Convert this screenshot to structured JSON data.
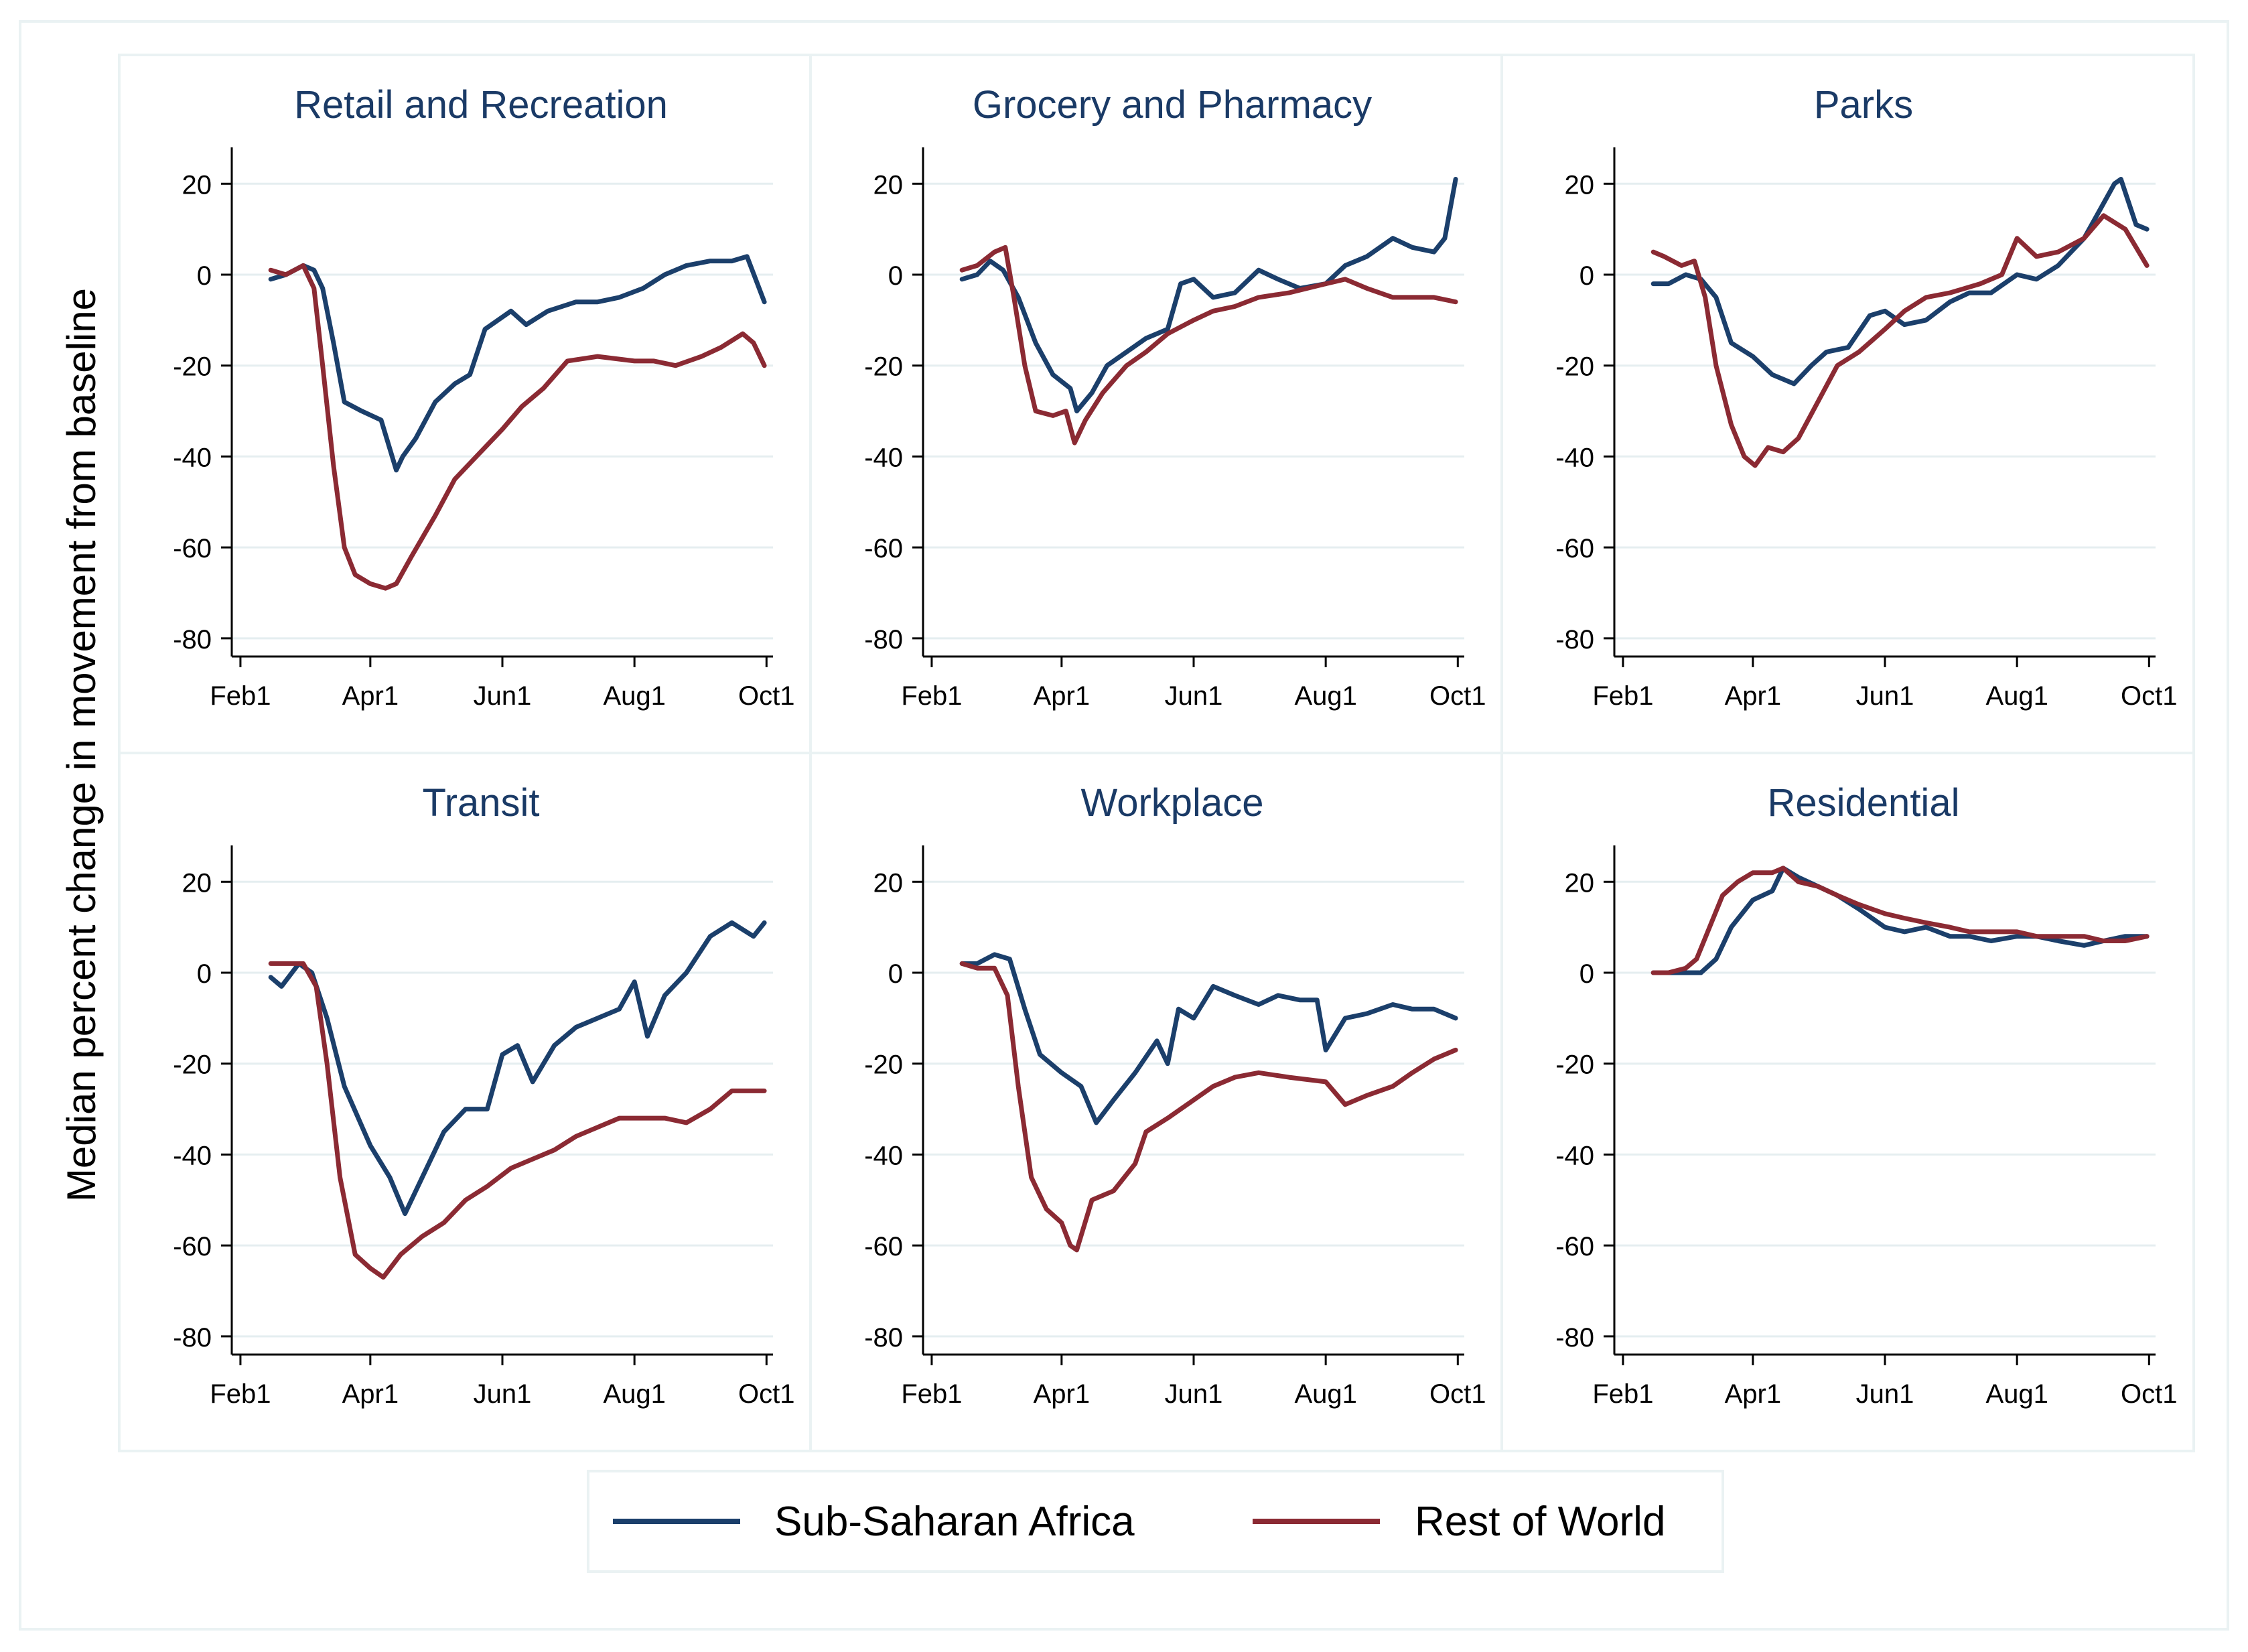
{
  "figure": {
    "ylabel": "Median percent change in movement from baseline",
    "legend": {
      "position": "bottom-center",
      "items": [
        {
          "label": "Sub-Saharan Africa",
          "color": "#1b3f6b"
        },
        {
          "label": "Rest of World",
          "color": "#8b2a33"
        }
      ]
    }
  },
  "chart_data": [
    {
      "type": "line",
      "title": "Retail and Recreation",
      "x_ticks": [
        "Feb1",
        "Apr1",
        "Jun1",
        "Aug1",
        "Oct1"
      ],
      "y_ticks": [
        20,
        0,
        -20,
        -40,
        -60,
        -80
      ],
      "ylim": [
        -84,
        28
      ],
      "grid": true,
      "series": [
        {
          "name": "Sub-Saharan Africa",
          "color": "#1b3f6b",
          "x": [
            "2020-02-15",
            "2020-02-22",
            "2020-03-01",
            "2020-03-06",
            "2020-03-10",
            "2020-03-15",
            "2020-03-20",
            "2020-03-28",
            "2020-04-06",
            "2020-04-13",
            "2020-04-16",
            "2020-04-22",
            "2020-05-01",
            "2020-05-10",
            "2020-05-17",
            "2020-05-24",
            "2020-06-05",
            "2020-06-12",
            "2020-06-22",
            "2020-07-05",
            "2020-07-15",
            "2020-07-25",
            "2020-08-05",
            "2020-08-15",
            "2020-08-25",
            "2020-09-05",
            "2020-09-15",
            "2020-09-22",
            "2020-09-30"
          ],
          "y": [
            -1,
            0,
            2,
            1,
            -3,
            -15,
            -28,
            -30,
            -32,
            -43,
            -40,
            -36,
            -28,
            -24,
            -22,
            -12,
            -8,
            -11,
            -8,
            -6,
            -6,
            -5,
            -3,
            0,
            2,
            3,
            3,
            4,
            -6
          ]
        },
        {
          "name": "Rest of World",
          "color": "#8b2a33",
          "x": [
            "2020-02-15",
            "2020-02-22",
            "2020-03-01",
            "2020-03-06",
            "2020-03-10",
            "2020-03-15",
            "2020-03-20",
            "2020-03-25",
            "2020-04-01",
            "2020-04-08",
            "2020-04-13",
            "2020-04-20",
            "2020-05-01",
            "2020-05-10",
            "2020-05-20",
            "2020-06-01",
            "2020-06-10",
            "2020-06-20",
            "2020-07-01",
            "2020-07-15",
            "2020-08-01",
            "2020-08-10",
            "2020-08-20",
            "2020-09-01",
            "2020-09-10",
            "2020-09-20",
            "2020-09-25",
            "2020-09-30"
          ],
          "y": [
            1,
            0,
            2,
            -3,
            -20,
            -42,
            -60,
            -66,
            -68,
            -69,
            -68,
            -62,
            -53,
            -45,
            -40,
            -34,
            -29,
            -25,
            -19,
            -18,
            -19,
            -19,
            -20,
            -18,
            -16,
            -13,
            -15,
            -20
          ]
        }
      ]
    },
    {
      "type": "line",
      "title": "Grocery and Pharmacy",
      "x_ticks": [
        "Feb1",
        "Apr1",
        "Jun1",
        "Aug1",
        "Oct1"
      ],
      "y_ticks": [
        20,
        0,
        -20,
        -40,
        -60,
        -80
      ],
      "ylim": [
        -84,
        28
      ],
      "grid": true,
      "series": [
        {
          "name": "Sub-Saharan Africa",
          "color": "#1b3f6b",
          "x": [
            "2020-02-15",
            "2020-02-22",
            "2020-02-28",
            "2020-03-05",
            "2020-03-12",
            "2020-03-20",
            "2020-03-28",
            "2020-04-05",
            "2020-04-08",
            "2020-04-15",
            "2020-04-22",
            "2020-05-01",
            "2020-05-10",
            "2020-05-20",
            "2020-05-26",
            "2020-06-01",
            "2020-06-10",
            "2020-06-20",
            "2020-07-01",
            "2020-07-10",
            "2020-07-20",
            "2020-08-01",
            "2020-08-10",
            "2020-08-20",
            "2020-09-01",
            "2020-09-10",
            "2020-09-20",
            "2020-09-25",
            "2020-09-30"
          ],
          "y": [
            -1,
            0,
            3,
            1,
            -5,
            -15,
            -22,
            -25,
            -30,
            -26,
            -20,
            -17,
            -14,
            -12,
            -2,
            -1,
            -5,
            -4,
            1,
            -1,
            -3,
            -2,
            2,
            4,
            8,
            6,
            5,
            8,
            21
          ]
        },
        {
          "name": "Rest of World",
          "color": "#8b2a33",
          "x": [
            "2020-02-15",
            "2020-02-22",
            "2020-03-01",
            "2020-03-06",
            "2020-03-10",
            "2020-03-15",
            "2020-03-20",
            "2020-03-28",
            "2020-04-03",
            "2020-04-07",
            "2020-04-12",
            "2020-04-20",
            "2020-05-01",
            "2020-05-10",
            "2020-05-20",
            "2020-06-01",
            "2020-06-10",
            "2020-06-20",
            "2020-07-01",
            "2020-07-15",
            "2020-08-01",
            "2020-08-10",
            "2020-08-20",
            "2020-09-01",
            "2020-09-10",
            "2020-09-20",
            "2020-09-30"
          ],
          "y": [
            1,
            2,
            5,
            6,
            -5,
            -20,
            -30,
            -31,
            -30,
            -37,
            -32,
            -26,
            -20,
            -17,
            -13,
            -10,
            -8,
            -7,
            -5,
            -4,
            -2,
            -1,
            -3,
            -5,
            -5,
            -5,
            -6
          ]
        }
      ]
    },
    {
      "type": "line",
      "title": "Parks",
      "x_ticks": [
        "Feb1",
        "Apr1",
        "Jun1",
        "Aug1",
        "Oct1"
      ],
      "y_ticks": [
        20,
        0,
        -20,
        -40,
        -60,
        -80
      ],
      "ylim": [
        -84,
        28
      ],
      "grid": true,
      "series": [
        {
          "name": "Sub-Saharan Africa",
          "color": "#1b3f6b",
          "x": [
            "2020-02-15",
            "2020-02-22",
            "2020-03-01",
            "2020-03-08",
            "2020-03-15",
            "2020-03-22",
            "2020-04-01",
            "2020-04-10",
            "2020-04-20",
            "2020-04-28",
            "2020-05-05",
            "2020-05-15",
            "2020-05-25",
            "2020-06-01",
            "2020-06-10",
            "2020-06-20",
            "2020-07-01",
            "2020-07-10",
            "2020-07-20",
            "2020-08-01",
            "2020-08-10",
            "2020-08-20",
            "2020-09-01",
            "2020-09-08",
            "2020-09-15",
            "2020-09-18",
            "2020-09-25",
            "2020-09-30"
          ],
          "y": [
            -2,
            -2,
            0,
            -1,
            -5,
            -15,
            -18,
            -22,
            -24,
            -20,
            -17,
            -16,
            -9,
            -8,
            -11,
            -10,
            -6,
            -4,
            -4,
            0,
            -1,
            2,
            8,
            14,
            20,
            21,
            11,
            10
          ]
        },
        {
          "name": "Rest of World",
          "color": "#8b2a33",
          "x": [
            "2020-02-15",
            "2020-02-20",
            "2020-02-28",
            "2020-03-05",
            "2020-03-10",
            "2020-03-15",
            "2020-03-22",
            "2020-03-28",
            "2020-04-02",
            "2020-04-08",
            "2020-04-15",
            "2020-04-22",
            "2020-05-01",
            "2020-05-10",
            "2020-05-20",
            "2020-06-01",
            "2020-06-10",
            "2020-06-20",
            "2020-07-01",
            "2020-07-15",
            "2020-07-25",
            "2020-08-01",
            "2020-08-10",
            "2020-08-20",
            "2020-09-01",
            "2020-09-10",
            "2020-09-20",
            "2020-09-30"
          ],
          "y": [
            5,
            4,
            2,
            3,
            -5,
            -20,
            -33,
            -40,
            -42,
            -38,
            -39,
            -36,
            -28,
            -20,
            -17,
            -12,
            -8,
            -5,
            -4,
            -2,
            0,
            8,
            4,
            5,
            8,
            13,
            10,
            2
          ]
        }
      ]
    },
    {
      "type": "line",
      "title": "Transit",
      "x_ticks": [
        "Feb1",
        "Apr1",
        "Jun1",
        "Aug1",
        "Oct1"
      ],
      "y_ticks": [
        20,
        0,
        -20,
        -40,
        -60,
        -80
      ],
      "ylim": [
        -84,
        28
      ],
      "grid": true,
      "series": [
        {
          "name": "Sub-Saharan Africa",
          "color": "#1b3f6b",
          "x": [
            "2020-02-15",
            "2020-02-20",
            "2020-02-28",
            "2020-03-05",
            "2020-03-12",
            "2020-03-20",
            "2020-04-01",
            "2020-04-10",
            "2020-04-17",
            "2020-04-25",
            "2020-05-05",
            "2020-05-15",
            "2020-05-25",
            "2020-06-01",
            "2020-06-08",
            "2020-06-15",
            "2020-06-25",
            "2020-07-05",
            "2020-07-15",
            "2020-07-25",
            "2020-08-01",
            "2020-08-07",
            "2020-08-15",
            "2020-08-25",
            "2020-09-05",
            "2020-09-15",
            "2020-09-25",
            "2020-09-30"
          ],
          "y": [
            -1,
            -3,
            2,
            0,
            -10,
            -25,
            -38,
            -45,
            -53,
            -45,
            -35,
            -30,
            -30,
            -18,
            -16,
            -24,
            -16,
            -12,
            -10,
            -8,
            -2,
            -14,
            -5,
            0,
            8,
            11,
            8,
            11
          ]
        },
        {
          "name": "Rest of World",
          "color": "#8b2a33",
          "x": [
            "2020-02-15",
            "2020-02-22",
            "2020-03-01",
            "2020-03-07",
            "2020-03-12",
            "2020-03-18",
            "2020-03-25",
            "2020-04-01",
            "2020-04-07",
            "2020-04-15",
            "2020-04-25",
            "2020-05-05",
            "2020-05-15",
            "2020-05-25",
            "2020-06-05",
            "2020-06-15",
            "2020-06-25",
            "2020-07-05",
            "2020-07-15",
            "2020-07-25",
            "2020-08-05",
            "2020-08-15",
            "2020-08-25",
            "2020-09-05",
            "2020-09-15",
            "2020-09-25",
            "2020-09-30"
          ],
          "y": [
            2,
            2,
            2,
            -3,
            -20,
            -45,
            -62,
            -65,
            -67,
            -62,
            -58,
            -55,
            -50,
            -47,
            -43,
            -41,
            -39,
            -36,
            -34,
            -32,
            -32,
            -32,
            -33,
            -30,
            -26,
            -26,
            -26
          ]
        }
      ]
    },
    {
      "type": "line",
      "title": "Workplace",
      "x_ticks": [
        "Feb1",
        "Apr1",
        "Jun1",
        "Aug1",
        "Oct1"
      ],
      "y_ticks": [
        20,
        0,
        -20,
        -40,
        -60,
        -80
      ],
      "ylim": [
        -84,
        28
      ],
      "grid": true,
      "series": [
        {
          "name": "Sub-Saharan Africa",
          "color": "#1b3f6b",
          "x": [
            "2020-02-15",
            "2020-02-22",
            "2020-03-01",
            "2020-03-08",
            "2020-03-15",
            "2020-03-22",
            "2020-04-01",
            "2020-04-10",
            "2020-04-17",
            "2020-04-25",
            "2020-05-05",
            "2020-05-15",
            "2020-05-20",
            "2020-05-25",
            "2020-06-01",
            "2020-06-10",
            "2020-06-20",
            "2020-07-01",
            "2020-07-10",
            "2020-07-20",
            "2020-07-28",
            "2020-08-01",
            "2020-08-10",
            "2020-08-20",
            "2020-09-01",
            "2020-09-10",
            "2020-09-20",
            "2020-09-30"
          ],
          "y": [
            2,
            2,
            4,
            3,
            -8,
            -18,
            -22,
            -25,
            -33,
            -28,
            -22,
            -15,
            -20,
            -8,
            -10,
            -3,
            -5,
            -7,
            -5,
            -6,
            -6,
            -17,
            -10,
            -9,
            -7,
            -8,
            -8,
            -10
          ]
        },
        {
          "name": "Rest of World",
          "color": "#8b2a33",
          "x": [
            "2020-02-15",
            "2020-02-22",
            "2020-03-01",
            "2020-03-07",
            "2020-03-12",
            "2020-03-18",
            "2020-03-25",
            "2020-04-01",
            "2020-04-05",
            "2020-04-08",
            "2020-04-15",
            "2020-04-25",
            "2020-05-05",
            "2020-05-10",
            "2020-05-20",
            "2020-06-01",
            "2020-06-10",
            "2020-06-20",
            "2020-07-01",
            "2020-07-15",
            "2020-08-01",
            "2020-08-10",
            "2020-08-20",
            "2020-09-01",
            "2020-09-10",
            "2020-09-20",
            "2020-09-30"
          ],
          "y": [
            2,
            1,
            1,
            -5,
            -25,
            -45,
            -52,
            -55,
            -60,
            -61,
            -50,
            -48,
            -42,
            -35,
            -32,
            -28,
            -25,
            -23,
            -22,
            -23,
            -24,
            -29,
            -27,
            -25,
            -22,
            -19,
            -17
          ]
        }
      ]
    },
    {
      "type": "line",
      "title": "Residential",
      "x_ticks": [
        "Feb1",
        "Apr1",
        "Jun1",
        "Aug1",
        "Oct1"
      ],
      "y_ticks": [
        20,
        0,
        -20,
        -40,
        -60,
        -80
      ],
      "ylim": [
        -84,
        28
      ],
      "grid": true,
      "series": [
        {
          "name": "Sub-Saharan Africa",
          "color": "#1b3f6b",
          "x": [
            "2020-02-15",
            "2020-02-22",
            "2020-03-01",
            "2020-03-08",
            "2020-03-15",
            "2020-03-22",
            "2020-04-01",
            "2020-04-10",
            "2020-04-15",
            "2020-04-22",
            "2020-05-01",
            "2020-05-10",
            "2020-05-20",
            "2020-06-01",
            "2020-06-10",
            "2020-06-20",
            "2020-07-01",
            "2020-07-10",
            "2020-07-20",
            "2020-08-01",
            "2020-08-10",
            "2020-08-20",
            "2020-09-01",
            "2020-09-10",
            "2020-09-20",
            "2020-09-30"
          ],
          "y": [
            0,
            0,
            0,
            0,
            3,
            10,
            16,
            18,
            23,
            21,
            19,
            17,
            14,
            10,
            9,
            10,
            8,
            8,
            7,
            8,
            8,
            7,
            6,
            7,
            8,
            8
          ]
        },
        {
          "name": "Rest of World",
          "color": "#8b2a33",
          "x": [
            "2020-02-15",
            "2020-02-22",
            "2020-03-01",
            "2020-03-06",
            "2020-03-12",
            "2020-03-18",
            "2020-03-25",
            "2020-04-01",
            "2020-04-10",
            "2020-04-15",
            "2020-04-22",
            "2020-05-01",
            "2020-05-10",
            "2020-05-20",
            "2020-06-01",
            "2020-06-10",
            "2020-06-20",
            "2020-07-01",
            "2020-07-10",
            "2020-07-20",
            "2020-08-01",
            "2020-08-10",
            "2020-08-20",
            "2020-09-01",
            "2020-09-10",
            "2020-09-20",
            "2020-09-30"
          ],
          "y": [
            0,
            0,
            1,
            3,
            10,
            17,
            20,
            22,
            22,
            23,
            20,
            19,
            17,
            15,
            13,
            12,
            11,
            10,
            9,
            9,
            9,
            8,
            8,
            8,
            7,
            7,
            8
          ]
        }
      ]
    }
  ]
}
